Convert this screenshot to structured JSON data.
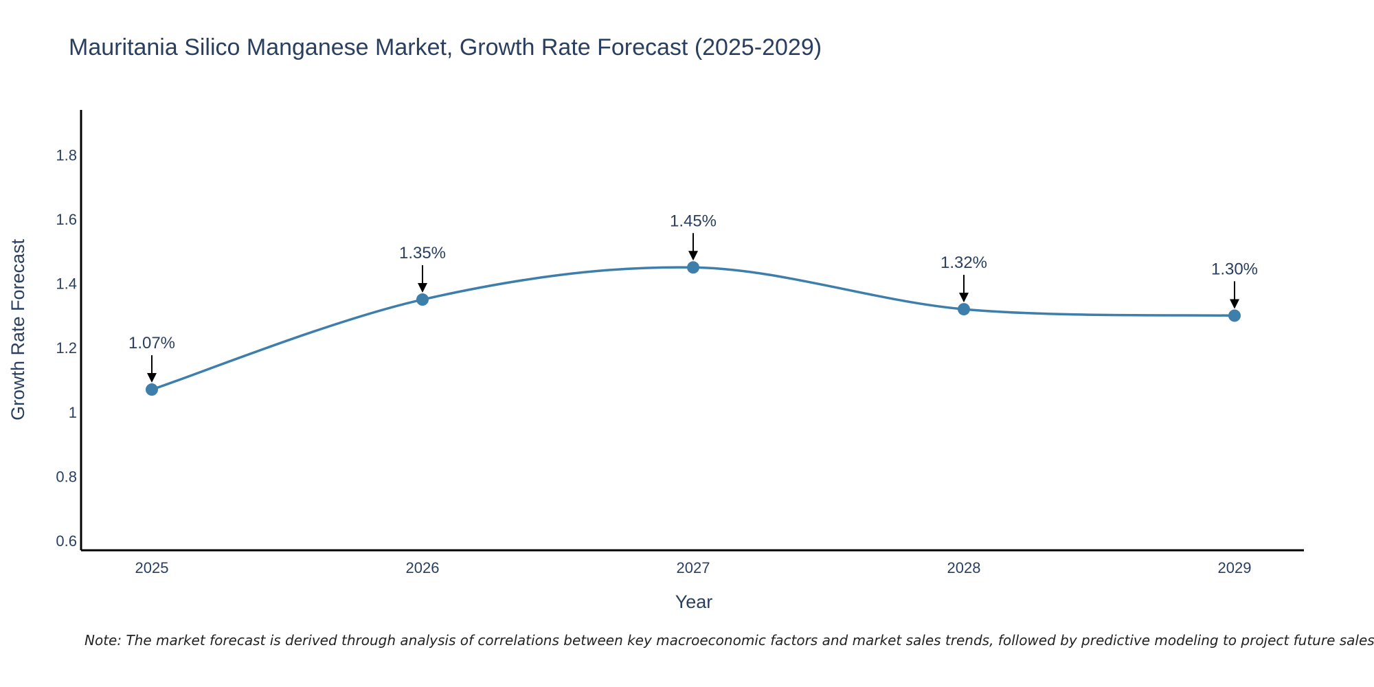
{
  "chart_data": {
    "type": "line",
    "title": "Mauritania Silico Manganese Market, Growth Rate Forecast (2025-2029)",
    "xlabel": "Year",
    "ylabel": "Growth Rate Forecast",
    "categories": [
      "2025",
      "2026",
      "2027",
      "2028",
      "2029"
    ],
    "series": [
      {
        "values": [
          1.07,
          1.35,
          1.45,
          1.32,
          1.3
        ]
      }
    ],
    "data_labels": [
      "1.07%",
      "1.35%",
      "1.45%",
      "1.32%",
      "1.30%"
    ],
    "y_ticks": [
      0.6,
      0.8,
      1,
      1.2,
      1.4,
      1.6,
      1.8
    ],
    "y_tick_labels": [
      "0.6",
      "0.8",
      "1",
      "1.2",
      "1.4",
      "1.6",
      "1.8"
    ],
    "ylim": [
      0.57,
      1.94
    ],
    "line_shape": "spline",
    "grid": false,
    "line_color": "#3d7eaa",
    "marker_color": "#3d7eaa"
  },
  "note": "Note: The market forecast is derived through analysis of correlations between key macroeconomic factors and market sales trends, followed by predictive modeling to project future sales."
}
